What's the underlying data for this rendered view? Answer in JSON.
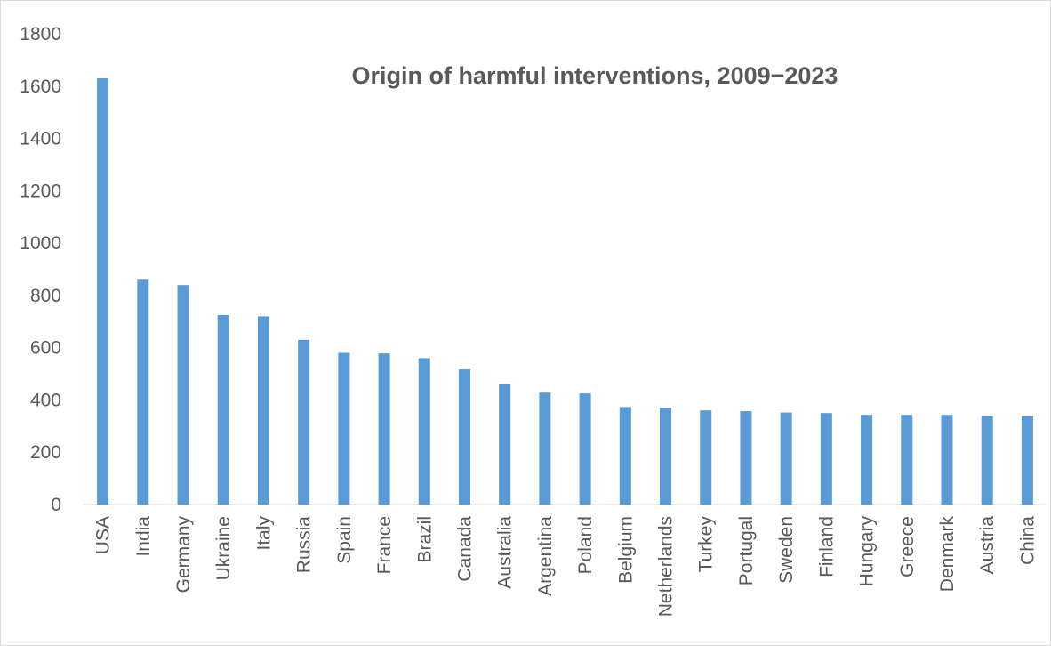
{
  "chart_data": {
    "type": "bar",
    "title": "Origin of harmful interventions, 2009−2023",
    "xlabel": "",
    "ylabel": "",
    "ylim": [
      0,
      1800
    ],
    "yticks": [
      0,
      200,
      400,
      600,
      800,
      1000,
      1200,
      1400,
      1600,
      1800
    ],
    "grid": false,
    "legend": "none",
    "bar_color": "#5B9BD5",
    "categories": [
      "USA",
      "India",
      "Germany",
      "Ukraine",
      "Italy",
      "Russia",
      "Spain",
      "France",
      "Brazil",
      "Canada",
      "Australia",
      "Argentina",
      "Poland",
      "Belgium",
      "Netherlands",
      "Turkey",
      "Portugal",
      "Sweden",
      "Finland",
      "Hungary",
      "Greece",
      "Denmark",
      "Austria",
      "China"
    ],
    "values": [
      1630,
      860,
      840,
      725,
      720,
      630,
      580,
      578,
      560,
      517,
      460,
      428,
      425,
      373,
      370,
      360,
      357,
      352,
      350,
      343,
      343,
      343,
      338,
      338
    ]
  }
}
